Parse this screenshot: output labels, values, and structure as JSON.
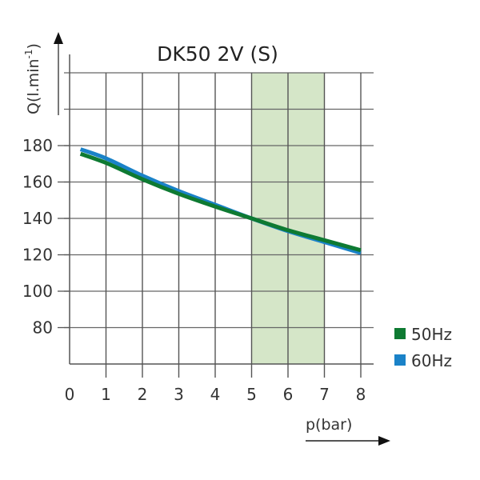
{
  "chart_data": {
    "type": "line",
    "title": "DK50 2V (S)",
    "xlabel": "p(bar)",
    "ylabel": "Q(l.min-1)",
    "ylabel_base": "Q(l.min",
    "ylabel_sup": "-1",
    "ylabel_close": ")",
    "xlim": [
      0,
      8
    ],
    "ylim": [
      60,
      220
    ],
    "x_ticks": [
      0,
      1,
      2,
      3,
      4,
      5,
      6,
      7,
      8
    ],
    "x_tick_labels": [
      "0",
      "1",
      "2",
      "3",
      "4",
      "5",
      "6",
      "7",
      "8"
    ],
    "y_ticks": [
      80,
      100,
      120,
      140,
      160,
      180
    ],
    "y_tick_labels": [
      "80",
      "100",
      "120",
      "140",
      "160",
      "180"
    ],
    "y_grid": [
      80,
      100,
      120,
      140,
      160,
      180,
      200,
      220
    ],
    "grid": true,
    "highlight_band": {
      "x_from": 5,
      "x_to": 7,
      "color": "#d5e6c8"
    },
    "legend_position": "right-bottom",
    "series": [
      {
        "name": "50Hz",
        "color": "#0e7a32",
        "x": [
          0.3,
          1,
          2,
          3,
          4,
          5,
          6,
          7,
          8
        ],
        "y": [
          175.5,
          170.5,
          161.5,
          153.5,
          146.5,
          140,
          133.5,
          128,
          122.5
        ]
      },
      {
        "name": "60Hz",
        "color": "#1a82c8",
        "x": [
          0.3,
          1,
          2,
          3,
          4,
          5,
          6,
          7,
          8
        ],
        "y": [
          178,
          173,
          163.5,
          155,
          147.5,
          140,
          133,
          127,
          121
        ]
      }
    ]
  },
  "legend": {
    "items": [
      {
        "label": "50Hz",
        "color": "#0e7a32"
      },
      {
        "label": "60Hz",
        "color": "#1a82c8"
      }
    ]
  }
}
